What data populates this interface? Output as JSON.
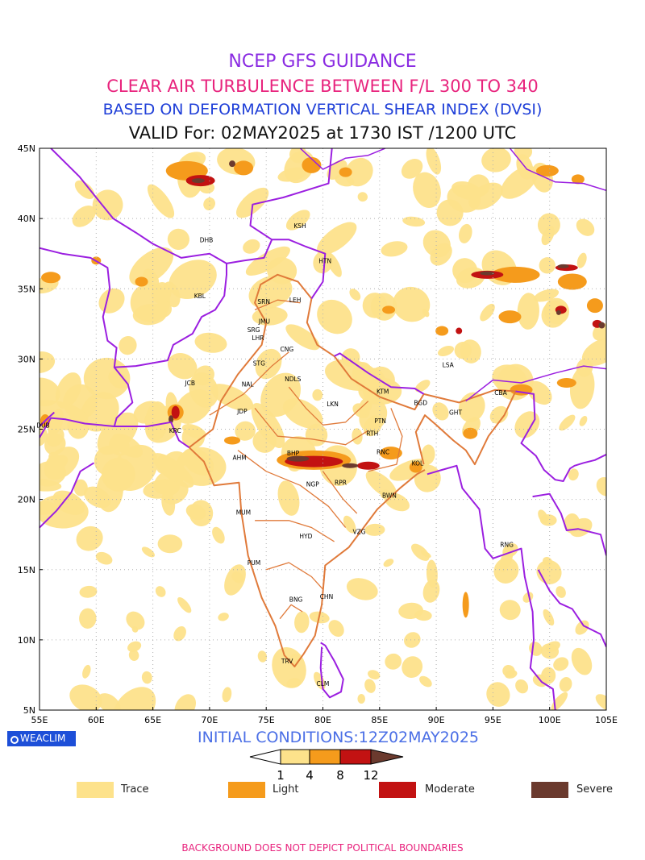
{
  "header": {
    "line1": "NCEP GFS GUIDANCE",
    "line2": "CLEAR AIR TURBULENCE BETWEEN F/L 300 TO 340",
    "line3": "BASED ON DEFORMATION VERTICAL SHEAR INDEX (DVSI)",
    "line4": "VALID For: 02MAY2025 at 1730 IST /1200 UTC"
  },
  "colors": {
    "title1": "#8a2be2",
    "title2": "#e8237d",
    "title3": "#1f3fd8",
    "title4": "#111111",
    "trace": "#fde28b",
    "light": "#f59b1c",
    "moderate": "#c21212",
    "severe": "#6b3a2e",
    "boundary": "#9b1fe0",
    "india_outline": "#e07a3a",
    "grid": "#b0b0b0",
    "footer": "#e8237d",
    "init": "#4b6fe6"
  },
  "axes": {
    "lat_labels": [
      "45N",
      "40N",
      "35N",
      "30N",
      "25N",
      "20N",
      "15N",
      "10N",
      "5N"
    ],
    "lon_labels": [
      "55E",
      "60E",
      "65E",
      "70E",
      "75E",
      "80E",
      "85E",
      "90E",
      "95E",
      "100E",
      "105E"
    ]
  },
  "stations": [
    {
      "code": "KSH",
      "lon": 78.0,
      "lat": 39.5
    },
    {
      "code": "DHB",
      "lon": 69.7,
      "lat": 38.5
    },
    {
      "code": "HTN",
      "lon": 80.2,
      "lat": 37.0
    },
    {
      "code": "KBL",
      "lon": 69.2,
      "lat": 34.5
    },
    {
      "code": "SRN",
      "lon": 74.8,
      "lat": 34.1
    },
    {
      "code": "LEH",
      "lon": 77.6,
      "lat": 34.2
    },
    {
      "code": "JMU",
      "lon": 74.9,
      "lat": 32.7
    },
    {
      "code": "SRG",
      "lon": 73.9,
      "lat": 32.1
    },
    {
      "code": "LHR",
      "lon": 74.3,
      "lat": 31.5
    },
    {
      "code": "CNG",
      "lon": 76.8,
      "lat": 30.7
    },
    {
      "code": "STG",
      "lon": 74.4,
      "lat": 29.7
    },
    {
      "code": "NAL",
      "lon": 73.4,
      "lat": 28.2
    },
    {
      "code": "NDLS",
      "lon": 77.2,
      "lat": 28.6
    },
    {
      "code": "JCB",
      "lon": 68.4,
      "lat": 28.3
    },
    {
      "code": "LSA",
      "lon": 91.1,
      "lat": 29.6
    },
    {
      "code": "KTM",
      "lon": 85.3,
      "lat": 27.7
    },
    {
      "code": "CBA",
      "lon": 95.7,
      "lat": 27.6
    },
    {
      "code": "BGD",
      "lon": 88.6,
      "lat": 26.9
    },
    {
      "code": "GHT",
      "lon": 91.7,
      "lat": 26.2
    },
    {
      "code": "LKN",
      "lon": 80.9,
      "lat": 26.8
    },
    {
      "code": "JDP",
      "lon": 73.0,
      "lat": 26.3
    },
    {
      "code": "PTN",
      "lon": 85.1,
      "lat": 25.6
    },
    {
      "code": "DUB",
      "lon": 55.3,
      "lat": 25.3
    },
    {
      "code": "KRC",
      "lon": 67.0,
      "lat": 24.9
    },
    {
      "code": "RTH",
      "lon": 84.4,
      "lat": 24.7
    },
    {
      "code": "AHM",
      "lon": 72.6,
      "lat": 23.0
    },
    {
      "code": "BHP",
      "lon": 77.4,
      "lat": 23.3
    },
    {
      "code": "RNC",
      "lon": 85.3,
      "lat": 23.4
    },
    {
      "code": "KOL",
      "lon": 88.4,
      "lat": 22.6
    },
    {
      "code": "NGP",
      "lon": 79.1,
      "lat": 21.1
    },
    {
      "code": "RPR",
      "lon": 81.6,
      "lat": 21.2
    },
    {
      "code": "BWN",
      "lon": 85.8,
      "lat": 20.3
    },
    {
      "code": "MUM",
      "lon": 72.9,
      "lat": 19.1
    },
    {
      "code": "HYD",
      "lon": 78.5,
      "lat": 17.4
    },
    {
      "code": "VZG",
      "lon": 83.2,
      "lat": 17.7
    },
    {
      "code": "RNG",
      "lon": 96.2,
      "lat": 16.8
    },
    {
      "code": "PUM",
      "lon": 73.9,
      "lat": 15.5
    },
    {
      "code": "CHN",
      "lon": 80.3,
      "lat": 13.1
    },
    {
      "code": "BNG",
      "lon": 77.6,
      "lat": 12.9
    },
    {
      "code": "TRV",
      "lon": 76.9,
      "lat": 8.5
    },
    {
      "code": "CLM",
      "lon": 80.0,
      "lat": 6.9
    }
  ],
  "badge": "WEACLIM",
  "init_label": "INITIAL CONDITIONS:12Z02MAY2025",
  "colorbar": {
    "thresholds": [
      "1",
      "4",
      "8",
      "12"
    ]
  },
  "legend": [
    {
      "label": "Trace",
      "color": "#fde28b"
    },
    {
      "label": "Light",
      "color": "#f59b1c"
    },
    {
      "label": "Moderate",
      "color": "#c21212"
    },
    {
      "label": "Severe",
      "color": "#6b3a2e"
    }
  ],
  "footer": "BACKGROUND DOES NOT DEPICT POLITICAL BOUNDARIES"
}
